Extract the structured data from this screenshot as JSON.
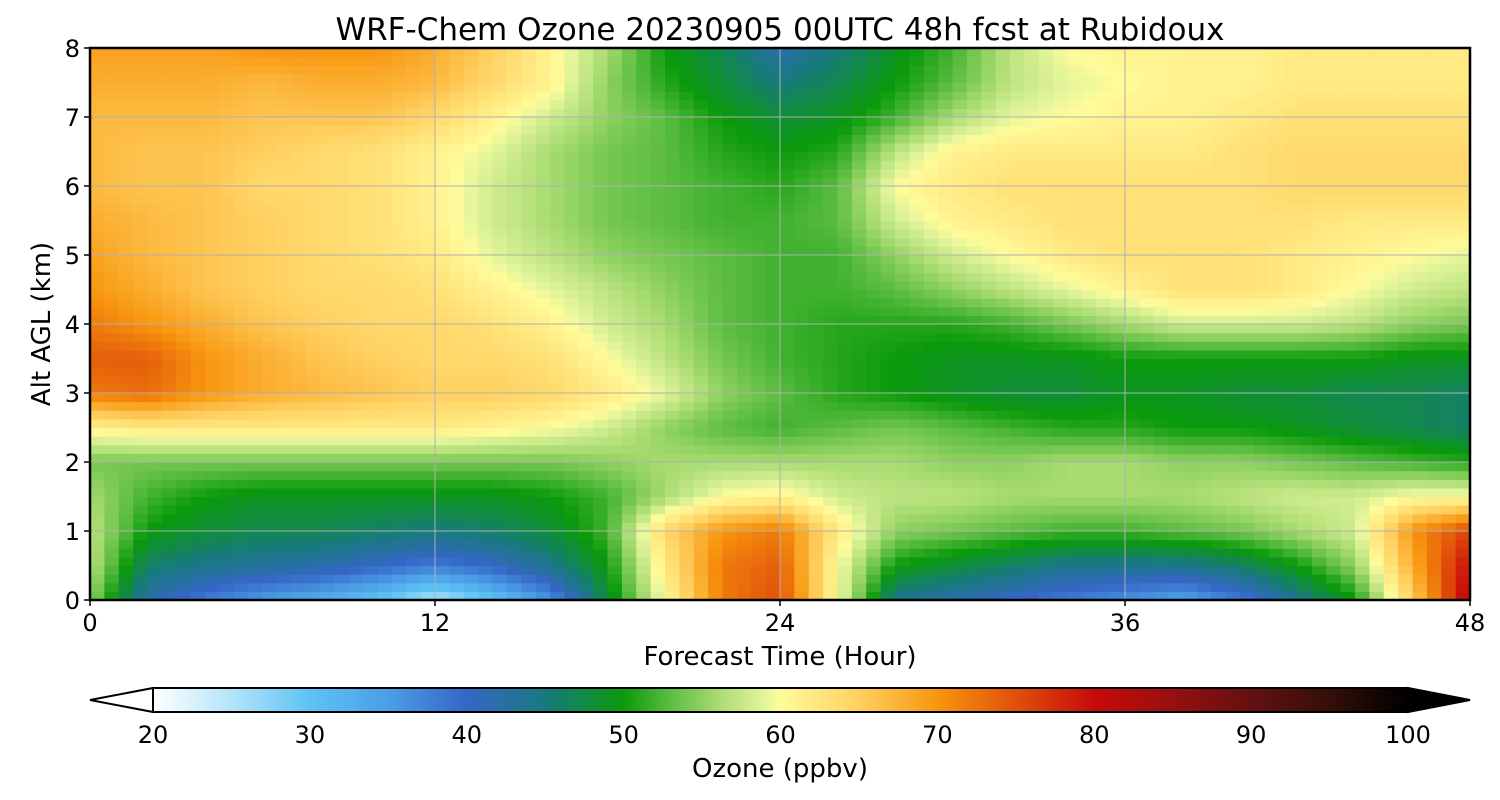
{
  "chart_data": {
    "type": "heatmap",
    "title": "WRF-Chem Ozone  20230905 00UTC 48h fcst at Rubidoux",
    "xlabel": "Forecast Time (Hour)",
    "ylabel": "Alt AGL (km)",
    "xlim": [
      0,
      48
    ],
    "ylim": [
      0,
      8
    ],
    "xticks": [
      0,
      12,
      24,
      36,
      48
    ],
    "yticks": [
      0,
      1,
      2,
      3,
      4,
      5,
      6,
      7,
      8
    ],
    "grid": true,
    "colorbar": {
      "label": "Ozone  (ppbv)",
      "min": 20,
      "max": 100,
      "ticks": [
        20,
        30,
        40,
        50,
        60,
        70,
        80,
        90,
        100
      ],
      "extend": "both",
      "orientation": "horizontal",
      "stops": [
        {
          "value": 20,
          "color": "#ffffff"
        },
        {
          "value": 25,
          "color": "#b4e4fa"
        },
        {
          "value": 30,
          "color": "#5ec3f5"
        },
        {
          "value": 35,
          "color": "#4a9ee6"
        },
        {
          "value": 40,
          "color": "#3566c6"
        },
        {
          "value": 45,
          "color": "#187a7e"
        },
        {
          "value": 50,
          "color": "#0a9a0a"
        },
        {
          "value": 53,
          "color": "#5cbd41"
        },
        {
          "value": 56,
          "color": "#a8db72"
        },
        {
          "value": 59,
          "color": "#e3f59a"
        },
        {
          "value": 60,
          "color": "#fffb9a"
        },
        {
          "value": 65,
          "color": "#ffd060"
        },
        {
          "value": 70,
          "color": "#f8960e"
        },
        {
          "value": 75,
          "color": "#e0500a"
        },
        {
          "value": 80,
          "color": "#c80a0a"
        },
        {
          "value": 85,
          "color": "#961010"
        },
        {
          "value": 90,
          "color": "#641010"
        },
        {
          "value": 95,
          "color": "#341008"
        },
        {
          "value": 100,
          "color": "#000000"
        }
      ]
    },
    "x": [
      0,
      2,
      4,
      6,
      8,
      10,
      12,
      14,
      16,
      18,
      20,
      22,
      24,
      26,
      28,
      30,
      32,
      34,
      36,
      38,
      40,
      42,
      44,
      46,
      48
    ],
    "y": [
      0,
      0.5,
      1,
      1.5,
      2,
      2.5,
      3,
      3.5,
      4,
      4.5,
      5,
      5.5,
      6,
      6.5,
      7,
      7.5,
      8
    ],
    "z": [
      [
        55,
        42,
        38,
        35,
        33,
        30,
        25,
        30,
        36,
        48,
        60,
        72,
        75,
        60,
        44,
        42,
        40,
        38,
        36,
        34,
        38,
        44,
        50,
        65,
        82
      ],
      [
        57,
        46,
        44,
        43,
        42,
        40,
        38,
        40,
        44,
        50,
        62,
        72,
        74,
        60,
        50,
        48,
        46,
        44,
        44,
        44,
        46,
        50,
        55,
        68,
        80
      ],
      [
        57,
        50,
        48,
        47,
        47,
        46,
        45,
        46,
        48,
        52,
        64,
        70,
        72,
        62,
        55,
        54,
        53,
        52,
        52,
        53,
        54,
        56,
        58,
        70,
        76
      ],
      [
        56,
        52,
        50,
        49,
        49,
        49,
        49,
        49,
        50,
        52,
        56,
        60,
        61,
        58,
        57,
        57,
        56,
        56,
        56,
        56,
        57,
        58,
        58,
        60,
        60
      ],
      [
        54,
        54,
        54,
        54,
        54,
        54,
        54,
        54,
        54,
        55,
        56,
        56,
        56,
        56,
        56,
        55,
        55,
        56,
        56,
        55,
        55,
        54,
        53,
        52,
        51
      ],
      [
        61,
        62,
        62,
        62,
        62,
        62,
        62,
        61,
        60,
        58,
        55,
        53,
        52,
        53,
        54,
        53,
        52,
        51,
        51,
        50,
        50,
        49,
        48,
        47,
        46
      ],
      [
        72,
        73,
        70,
        68,
        67,
        66,
        65,
        65,
        64,
        62,
        59,
        55,
        53,
        51,
        50,
        49,
        48,
        48,
        49,
        49,
        48,
        48,
        47,
        47,
        46
      ],
      [
        74,
        74,
        70,
        68,
        66,
        65,
        64,
        64,
        63,
        60,
        57,
        54,
        52,
        51,
        50,
        49,
        49,
        49,
        50,
        50,
        50,
        50,
        50,
        49,
        49
      ],
      [
        72,
        70,
        68,
        66,
        65,
        64,
        64,
        63,
        61,
        58,
        56,
        53,
        52,
        51,
        51,
        51,
        52,
        54,
        56,
        58,
        58,
        58,
        57,
        55,
        54
      ],
      [
        70,
        68,
        66,
        65,
        64,
        64,
        63,
        61,
        59,
        57,
        55,
        53,
        52,
        52,
        53,
        55,
        57,
        59,
        61,
        63,
        63,
        62,
        60,
        58,
        57
      ],
      [
        69,
        67,
        66,
        65,
        64,
        63,
        62,
        59,
        57,
        55,
        54,
        53,
        52,
        52,
        55,
        58,
        60,
        62,
        63,
        63,
        63,
        62,
        61,
        60,
        59
      ],
      [
        68,
        67,
        66,
        65,
        64,
        63,
        61,
        58,
        56,
        54,
        53,
        52,
        52,
        53,
        58,
        61,
        62,
        63,
        63,
        63,
        63,
        63,
        62,
        62,
        62
      ],
      [
        67,
        66,
        66,
        64,
        64,
        63,
        61,
        58,
        56,
        54,
        53,
        52,
        51,
        53,
        60,
        62,
        63,
        63,
        63,
        63,
        63,
        64,
        64,
        64,
        64
      ],
      [
        67,
        66,
        66,
        65,
        64,
        63,
        61,
        59,
        56,
        54,
        53,
        51,
        50,
        51,
        57,
        61,
        62,
        62,
        62,
        62,
        63,
        64,
        64,
        64,
        64
      ],
      [
        67,
        67,
        67,
        66,
        66,
        66,
        64,
        61,
        58,
        55,
        53,
        50,
        48,
        49,
        52,
        56,
        59,
        60,
        61,
        61,
        62,
        63,
        63,
        63,
        63
      ],
      [
        68,
        68,
        68,
        67,
        68,
        68,
        67,
        64,
        61,
        55,
        51,
        48,
        45,
        47,
        50,
        53,
        57,
        59,
        60,
        61,
        61,
        62,
        62,
        62,
        62
      ],
      [
        69,
        69,
        69,
        70,
        70,
        70,
        68,
        65,
        61,
        56,
        50,
        47,
        42,
        45,
        49,
        52,
        57,
        60,
        61,
        61,
        61,
        62,
        62,
        62,
        62
      ]
    ]
  }
}
